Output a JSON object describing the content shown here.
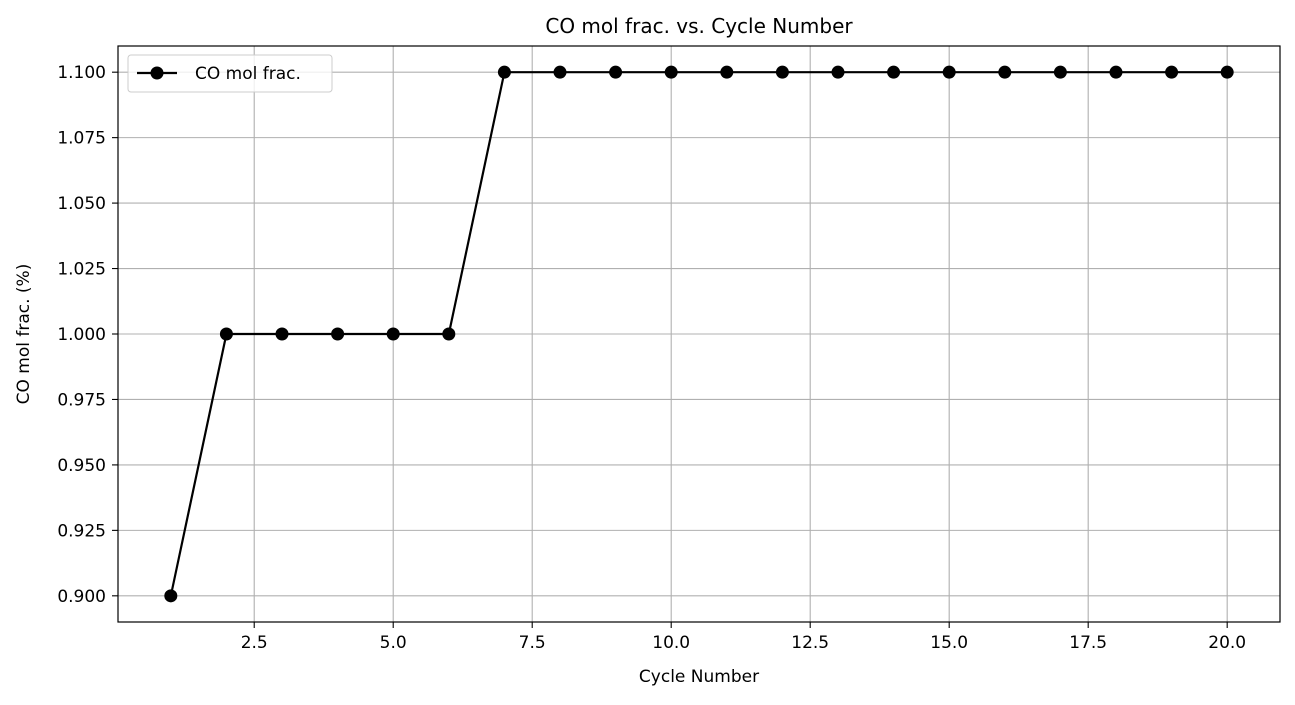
{
  "chart_data": {
    "type": "line",
    "title": "CO mol frac. vs. Cycle Number",
    "xlabel": "Cycle Number",
    "ylabel": "CO mol frac. (%)",
    "xlim": [
      0.05,
      20.95
    ],
    "ylim": [
      0.89,
      1.11
    ],
    "x_ticks": [
      2.5,
      5.0,
      7.5,
      10.0,
      12.5,
      15.0,
      17.5,
      20.0
    ],
    "x_tick_labels": [
      "2.5",
      "5.0",
      "7.5",
      "10.0",
      "12.5",
      "15.0",
      "17.5",
      "20.0"
    ],
    "y_ticks": [
      0.9,
      0.925,
      0.95,
      0.975,
      1.0,
      1.025,
      1.05,
      1.075,
      1.1
    ],
    "y_tick_labels": [
      "0.900",
      "0.925",
      "0.950",
      "0.975",
      "1.000",
      "1.025",
      "1.050",
      "1.075",
      "1.100"
    ],
    "grid": true,
    "legend_position": "top-left",
    "series": [
      {
        "name": "CO mol frac.",
        "color": "#000000",
        "marker": "circle",
        "x": [
          1,
          2,
          3,
          4,
          5,
          6,
          7,
          8,
          9,
          10,
          11,
          12,
          13,
          14,
          15,
          16,
          17,
          18,
          19,
          20
        ],
        "y": [
          0.9,
          1.0,
          1.0,
          1.0,
          1.0,
          1.0,
          1.1,
          1.1,
          1.1,
          1.1,
          1.1,
          1.1,
          1.1,
          1.1,
          1.1,
          1.1,
          1.1,
          1.1,
          1.1,
          1.1
        ]
      }
    ]
  }
}
